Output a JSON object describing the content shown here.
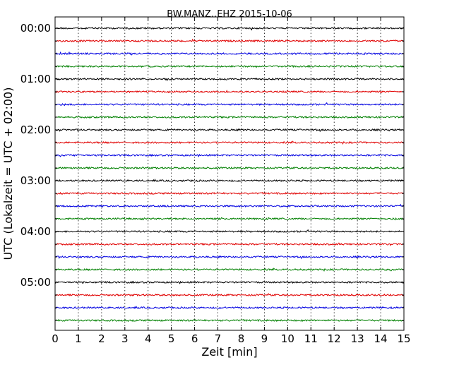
{
  "chart_data": {
    "type": "line",
    "title": "BW.MANZ..EHZ 2015-10-06",
    "xlabel": "Zeit  [min]",
    "ylabel": "UTC (Lokalzeit = UTC + 02:00)",
    "xlim": [
      0,
      15
    ],
    "x_ticks": [
      "0",
      "1",
      "2",
      "3",
      "4",
      "5",
      "6",
      "7",
      "8",
      "9",
      "10",
      "11",
      "12",
      "13",
      "14",
      "15"
    ],
    "grid_x": true,
    "trace_minutes": 15,
    "y_tick_labels": [
      "00:00",
      "01:00",
      "02:00",
      "03:00",
      "04:00",
      "05:00"
    ],
    "trace_start_times": [
      "00:00",
      "00:15",
      "00:30",
      "00:45",
      "01:00",
      "01:15",
      "01:30",
      "01:45",
      "02:00",
      "02:15",
      "02:30",
      "02:45",
      "03:00",
      "03:15",
      "03:30",
      "03:45",
      "04:00",
      "04:15",
      "04:30",
      "04:45",
      "05:00",
      "05:15",
      "05:30",
      "05:45"
    ],
    "trace_colors": [
      "#000000",
      "#e00000",
      "#0000e0",
      "#008000"
    ]
  }
}
